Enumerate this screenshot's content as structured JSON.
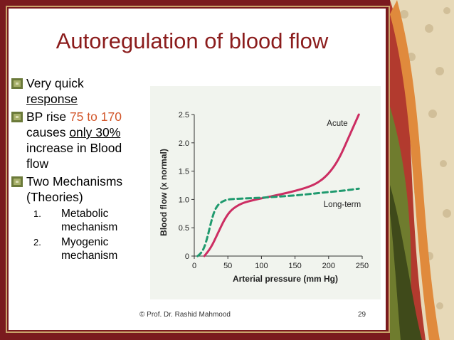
{
  "slide": {
    "title": "Autoregulation of blood flow",
    "bullets": {
      "b1_line1": "Very quick",
      "b1_line2": "response ",
      "b2_prefix": "BP rise ",
      "b2_range": "75 to 170",
      "b2_line2_prefix": "causes ",
      "b2_line2_underline": "only 30%",
      "b2_line3": "increase in Blood",
      "b2_line4": "flow",
      "b3_line1": "Two Mechanisms",
      "b3_line2": "(Theories)"
    },
    "sub_items": [
      {
        "num": "1.",
        "line1": "Metabolic",
        "line2": "mechanism"
      },
      {
        "num": "2.",
        "line1": "Myogenic",
        "line2": "mechanism"
      }
    ],
    "footer_credit": "© Prof. Dr. Rashid Mahmood",
    "page_number": "29",
    "colors": {
      "title": "#8b1c1c",
      "accent": "#d2562a",
      "frame": "#7a1a1e",
      "icon": "#6b7a3a"
    }
  },
  "chart_data": {
    "type": "line",
    "xlabel": "Arterial pressure (mm Hg)",
    "ylabel": "Blood flow (x normal)",
    "xlim": [
      0,
      250
    ],
    "ylim": [
      0,
      2.5
    ],
    "xticks": [
      "0",
      "50",
      "100",
      "150",
      "200",
      "250"
    ],
    "yticks": [
      "0",
      "0.5",
      "1.0",
      "1.5",
      "2.0",
      "2.5"
    ],
    "grid": false,
    "series": [
      {
        "name": "Acute",
        "color": "#cc2d62",
        "style": "solid",
        "x": [
          15,
          25,
          35,
          45,
          55,
          70,
          85,
          100,
          125,
          150,
          170,
          185,
          200,
          215,
          230,
          245
        ],
        "y": [
          0,
          0.15,
          0.4,
          0.65,
          0.82,
          0.93,
          0.98,
          1.02,
          1.08,
          1.15,
          1.22,
          1.3,
          1.45,
          1.7,
          2.1,
          2.5
        ]
      },
      {
        "name": "Long-term",
        "color": "#1f9a6e",
        "style": "dashed",
        "x": [
          5,
          10,
          15,
          20,
          25,
          30,
          35,
          40,
          45,
          50,
          60,
          80,
          100,
          125,
          150,
          175,
          200,
          225,
          245
        ],
        "y": [
          0,
          0.05,
          0.15,
          0.35,
          0.6,
          0.8,
          0.9,
          0.95,
          0.98,
          1.0,
          1.01,
          1.02,
          1.03,
          1.05,
          1.07,
          1.1,
          1.13,
          1.16,
          1.19
        ]
      }
    ]
  }
}
